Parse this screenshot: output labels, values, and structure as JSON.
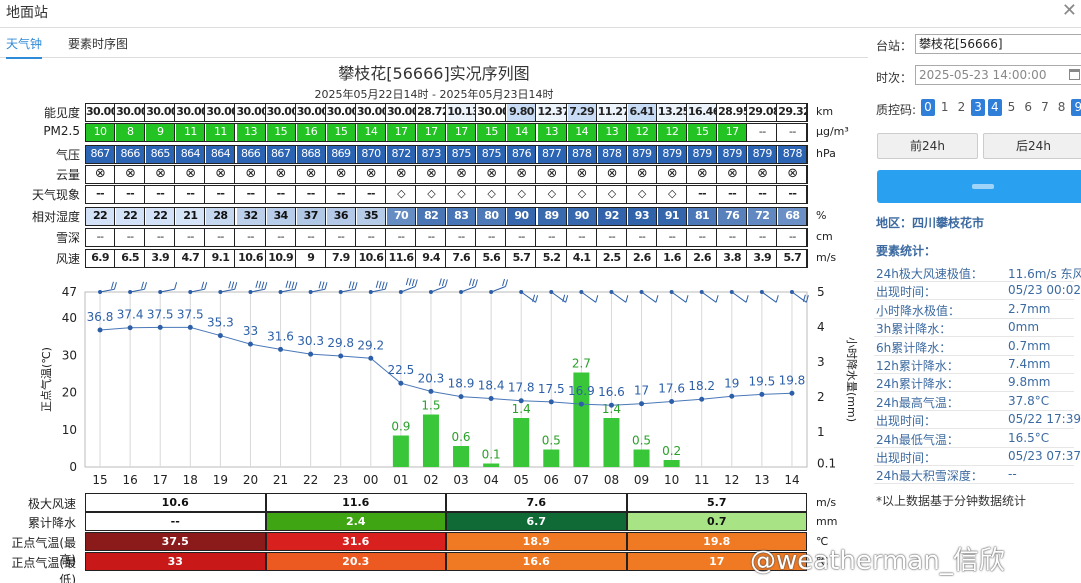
{
  "window": {
    "title": "地面站"
  },
  "tabs": [
    {
      "label": "天气钟"
    },
    {
      "label": "要素时序图"
    }
  ],
  "chart_title": "攀枝花[56666]实况序列图",
  "chart_subtitle": "2025年05月22日14时 - 2025年05月23日14时",
  "row_labels": [
    "能见度",
    "PM2.5",
    "气压",
    "云量",
    "天气现象",
    "相对湿度",
    "雪深",
    "风速"
  ],
  "row_units": [
    "km",
    "μg/m³",
    "hPa",
    "",
    "",
    "%",
    "cm",
    "m/s"
  ],
  "hours": [
    "15",
    "16",
    "17",
    "18",
    "19",
    "20",
    "21",
    "22",
    "23",
    "00",
    "01",
    "02",
    "03",
    "04",
    "05",
    "06",
    "07",
    "08",
    "09",
    "10",
    "11",
    "12",
    "13",
    "14"
  ],
  "visibility": [
    "30.00",
    "30.00",
    "30.00",
    "30.00",
    "30.00",
    "30.00",
    "30.00",
    "30.00",
    "30.00",
    "30.00",
    "30.00",
    "28.72",
    "10.13",
    "30.00",
    "9.80",
    "12.37",
    "7.29",
    "11.27",
    "6.41",
    "13.25",
    "16.46",
    "28.95",
    "29.08",
    "29.32"
  ],
  "pm25": [
    "10",
    "8",
    "9",
    "11",
    "11",
    "13",
    "15",
    "16",
    "15",
    "14",
    "17",
    "17",
    "17",
    "15",
    "14",
    "13",
    "14",
    "13",
    "12",
    "12",
    "15",
    "17",
    "--",
    "--"
  ],
  "pressure": [
    "867",
    "866",
    "865",
    "864",
    "864",
    "866",
    "867",
    "868",
    "869",
    "870",
    "872",
    "873",
    "875",
    "875",
    "876",
    "877",
    "878",
    "878",
    "879",
    "879",
    "879",
    "879",
    "879",
    "878"
  ],
  "cloud_glyph": "⊗",
  "weather": [
    "--",
    "--",
    "--",
    "--",
    "--",
    "--",
    "--",
    "--",
    "--",
    "--",
    "◇",
    "◇",
    "◇",
    "◇",
    "◇",
    "◇",
    "◇",
    "◇",
    "◇",
    "◇",
    "--",
    "--",
    "--",
    "--"
  ],
  "humidity": [
    "22",
    "22",
    "22",
    "21",
    "28",
    "32",
    "34",
    "37",
    "36",
    "35",
    "70",
    "82",
    "83",
    "80",
    "90",
    "89",
    "90",
    "92",
    "93",
    "91",
    "81",
    "76",
    "72",
    "68"
  ],
  "snow": [
    "--",
    "--",
    "--",
    "--",
    "--",
    "--",
    "--",
    "--",
    "--",
    "--",
    "--",
    "--",
    "--",
    "--",
    "--",
    "--",
    "--",
    "--",
    "--",
    "--",
    "--",
    "--",
    "--",
    "--"
  ],
  "wind": [
    "6.9",
    "6.5",
    "3.9",
    "4.7",
    "9.1",
    "10.6",
    "10.9",
    "9",
    "7.9",
    "10.6",
    "11.6",
    "9.4",
    "7.6",
    "5.6",
    "5.7",
    "5.2",
    "4.1",
    "2.5",
    "2.6",
    "1.6",
    "2.6",
    "3.8",
    "3.9",
    "5.7"
  ],
  "colors": {
    "pm_green": "#22c322",
    "temp_line": "#4a78b8",
    "precip_bar": "#39c739",
    "hum_low": "#d8e6f8",
    "hum_high": "#2c5fa8",
    "press_blue": "#2c64b4"
  },
  "chart_data": {
    "type": "line",
    "x": [
      "15",
      "16",
      "17",
      "18",
      "19",
      "20",
      "21",
      "22",
      "23",
      "00",
      "01",
      "02",
      "03",
      "04",
      "05",
      "06",
      "07",
      "08",
      "09",
      "10",
      "11",
      "12",
      "13",
      "14"
    ],
    "series": [
      {
        "name": "",
        "values": [
          36.8,
          37.4,
          37.5,
          37.5,
          35.3,
          33,
          31.6,
          30.3,
          29.8,
          29.2,
          22.5,
          20.3,
          18.9,
          18.4,
          17.8,
          17.5,
          16.9,
          16.6,
          17,
          17.6,
          18.2,
          19,
          19.5,
          19.8
        ]
      },
      {
        "name": "",
        "type": "bar",
        "values": [
          null,
          null,
          null,
          null,
          null,
          null,
          null,
          null,
          null,
          null,
          0.9,
          1.5,
          0.6,
          0.1,
          1.4,
          0.5,
          2.7,
          1.4,
          0.5,
          0.2,
          null,
          null,
          null,
          null
        ]
      }
    ],
    "ylabel_left": "正点气温(℃)",
    "ylabel_right": "小时降水量(mm)",
    "ylim_left": [
      0,
      47
    ],
    "yticks_left": [
      "47",
      "40",
      "30",
      "20",
      "10",
      "0"
    ],
    "yticks_right": [
      "5",
      "4",
      "3",
      "2",
      "1",
      "0.1"
    ],
    "ylim_right": [
      0,
      5
    ]
  },
  "bottom": {
    "labels": [
      "极大风速",
      "累计降水",
      "正点气温(最高)",
      "正点气温(最低)"
    ],
    "units": [
      "m/s",
      "mm",
      "℃",
      "℃"
    ],
    "wind": [
      "10.6",
      "11.6",
      "7.6",
      "5.7"
    ],
    "precip": [
      "--",
      "2.4",
      "6.7",
      "0.7"
    ],
    "tmax": [
      "37.5",
      "31.6",
      "18.9",
      "19.8"
    ],
    "tmin": [
      "33",
      "20.3",
      "16.6",
      "17"
    ],
    "precip_colors": [
      "#ffffff",
      "#3fa512",
      "#0f6a36",
      "#a8e486"
    ],
    "tmax_colors": [
      "#8b1a1a",
      "#d8201f",
      "#f07a23",
      "#f07a23"
    ],
    "tmin_colors": [
      "#c81818",
      "#ec5a22",
      "#f07a23",
      "#f07a23"
    ]
  },
  "side": {
    "station_label": "台站：",
    "station_value": "攀枝花[56666]",
    "time_label": "时次：",
    "time_value": "2025-05-23 14:00:00",
    "qc_label": "质控码:",
    "qc": [
      "0",
      "1",
      "2",
      "3",
      "4",
      "5",
      "6",
      "7",
      "8",
      "9"
    ],
    "prev_btn": "前24h",
    "next_btn": "后24h",
    "region": "地区：四川攀枝花市",
    "stats_title": "要素统计：",
    "stats": [
      {
        "k": "24h极大风速极值：",
        "v": "11.6m/s 东风"
      },
      {
        "k": "出现时间：",
        "v": "05/23 00:02"
      },
      {
        "k": "小时降水极值：",
        "v": "2.7mm"
      },
      {
        "k": "3h累计降水：",
        "v": "0mm"
      },
      {
        "k": "6h累计降水：",
        "v": "0.7mm"
      },
      {
        "k": "12h累计降水：",
        "v": "7.4mm"
      },
      {
        "k": "24h累计降水：",
        "v": "9.8mm"
      },
      {
        "k": "24h最高气温：",
        "v": "37.8°C"
      },
      {
        "k": "出现时间：",
        "v": "05/22 17:39"
      },
      {
        "k": "24h最低气温：",
        "v": "16.5°C"
      },
      {
        "k": "出现时间：",
        "v": "05/23 07:37"
      },
      {
        "k": "24h最大积雪深度：",
        "v": "--"
      }
    ],
    "note": "*以上数据基于分钟数据统计"
  },
  "watermark": "@weatherman_信欣"
}
